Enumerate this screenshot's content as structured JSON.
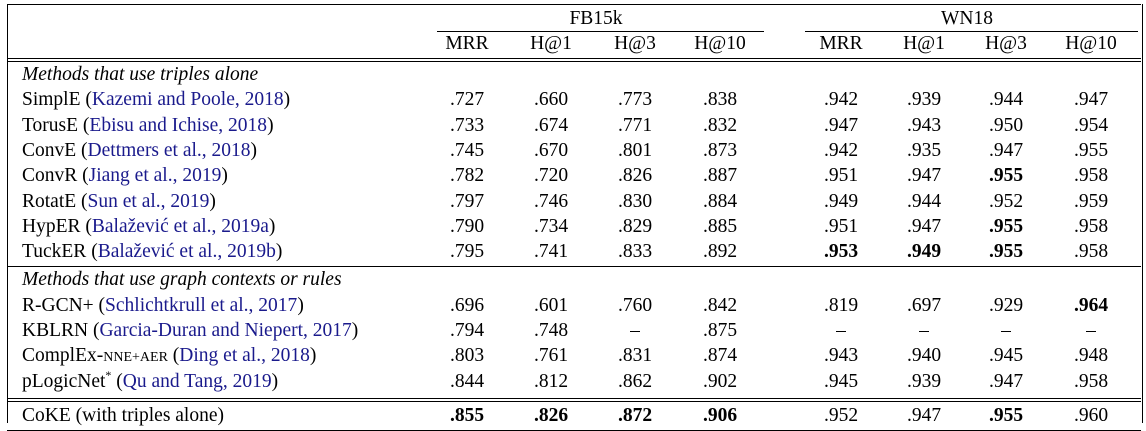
{
  "header": {
    "groups": [
      "FB15k",
      "WN18"
    ],
    "metrics": [
      "MRR",
      "H@1",
      "H@3",
      "H@10"
    ]
  },
  "sections": [
    {
      "title": "Methods that use triples alone",
      "rows": [
        {
          "method": "SimplE",
          "method_suffix": "",
          "sup": "",
          "cite": "Kazemi and Poole, 2018",
          "values": [
            ".727",
            ".660",
            ".773",
            ".838",
            ".942",
            ".939",
            ".944",
            ".947"
          ],
          "bold": []
        },
        {
          "method": "TorusE",
          "method_suffix": "",
          "sup": "",
          "cite": "Ebisu and Ichise, 2018",
          "values": [
            ".733",
            ".674",
            ".771",
            ".832",
            ".947",
            ".943",
            ".950",
            ".954"
          ],
          "bold": []
        },
        {
          "method": "ConvE",
          "method_suffix": "",
          "sup": "",
          "cite": "Dettmers et al., 2018",
          "values": [
            ".745",
            ".670",
            ".801",
            ".873",
            ".942",
            ".935",
            ".947",
            ".955"
          ],
          "bold": []
        },
        {
          "method": "ConvR",
          "method_suffix": "",
          "sup": "",
          "cite": "Jiang et al., 2019",
          "values": [
            ".782",
            ".720",
            ".826",
            ".887",
            ".951",
            ".947",
            ".955",
            ".958"
          ],
          "bold": [
            6
          ]
        },
        {
          "method": "RotatE",
          "method_suffix": "",
          "sup": "",
          "cite": "Sun et al., 2019",
          "values": [
            ".797",
            ".746",
            ".830",
            ".884",
            ".949",
            ".944",
            ".952",
            ".959"
          ],
          "bold": []
        },
        {
          "method": "HypER",
          "method_suffix": "",
          "sup": "",
          "cite": "Balažević et al., 2019a",
          "values": [
            ".790",
            ".734",
            ".829",
            ".885",
            ".951",
            ".947",
            ".955",
            ".958"
          ],
          "bold": [
            6
          ]
        },
        {
          "method": "TuckER",
          "method_suffix": "",
          "sup": "",
          "cite": "Balažević et al., 2019b",
          "values": [
            ".795",
            ".741",
            ".833",
            ".892",
            ".953",
            ".949",
            ".955",
            ".958"
          ],
          "bold": [
            4,
            5,
            6
          ]
        }
      ]
    },
    {
      "title": "Methods that use graph contexts or rules",
      "rows": [
        {
          "method": "R-GCN+",
          "method_suffix": "",
          "sup": "",
          "cite": "Schlichtkrull et al., 2017",
          "values": [
            ".696",
            ".601",
            ".760",
            ".842",
            ".819",
            ".697",
            ".929",
            ".964"
          ],
          "bold": [
            7
          ]
        },
        {
          "method": "KBLRN",
          "method_suffix": "",
          "sup": "",
          "cite": "Garcia-Duran and Niepert, 2017",
          "values": [
            ".794",
            ".748",
            "–",
            ".875",
            "–",
            "–",
            "–",
            "–"
          ],
          "bold": []
        },
        {
          "method": "ComplEx-",
          "method_suffix": "NNE+AER",
          "sup": "",
          "cite": "Ding et al., 2018",
          "values": [
            ".803",
            ".761",
            ".831",
            ".874",
            ".943",
            ".940",
            ".945",
            ".948"
          ],
          "bold": []
        },
        {
          "method": "pLogicNet",
          "method_suffix": "",
          "sup": "*",
          "cite": "Qu and Tang, 2019",
          "values": [
            ".844",
            ".812",
            ".862",
            ".902",
            ".945",
            ".939",
            ".947",
            ".958"
          ],
          "bold": []
        }
      ]
    }
  ],
  "final_row": {
    "method": "CoKE (with triples alone)",
    "values": [
      ".855",
      ".826",
      ".872",
      ".906",
      ".952",
      ".947",
      ".955",
      ".960"
    ],
    "bold": [
      0,
      1,
      2,
      3,
      6
    ]
  }
}
